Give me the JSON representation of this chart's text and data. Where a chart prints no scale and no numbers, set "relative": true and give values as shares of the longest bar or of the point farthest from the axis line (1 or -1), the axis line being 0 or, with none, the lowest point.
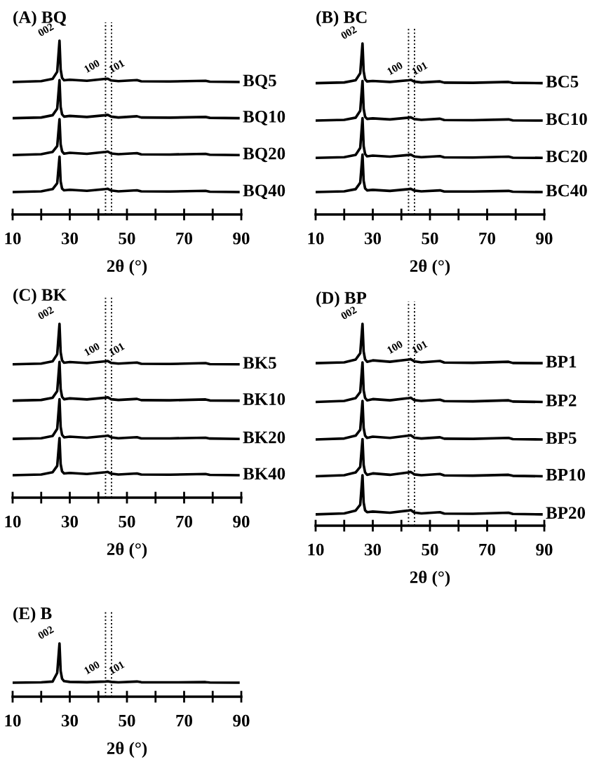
{
  "chart_data": [
    {
      "type": "line",
      "title": "(A) BQ",
      "xlabel": "2θ (°)",
      "relative": true,
      "tick_labels": "x",
      "legend": false,
      "grid": false,
      "marker": "none",
      "line_style": "solid",
      "xlim": [
        10,
        90
      ],
      "xticks": [
        10,
        {
          "value": 20,
          "label": null
        },
        30,
        {
          "value": 40,
          "label": null
        },
        50,
        {
          "value": 60,
          "label": null
        },
        70,
        {
          "value": 80,
          "label": null
        },
        90
      ],
      "x": [
        10,
        20,
        24,
        25.6,
        26.4,
        26.8,
        27.3,
        28,
        30,
        36,
        42.5,
        43.3,
        44.5,
        47,
        53.5,
        55,
        65,
        77.5,
        79,
        89
      ],
      "series": [
        {
          "name": "BQ5",
          "color": "#000000",
          "values": [
            0.762,
            0.767,
            0.78,
            0.821,
            1,
            0.834,
            0.786,
            0.772,
            0.775,
            0.769,
            0.78,
            0.781,
            0.771,
            0.767,
            0.773,
            0.766,
            0.765,
            0.769,
            0.764,
            0.762
          ]
        },
        {
          "name": "BQ10",
          "color": "#000000",
          "values": [
            0.554,
            0.558,
            0.571,
            0.609,
            0.773,
            0.619,
            0.576,
            0.563,
            0.567,
            0.561,
            0.571,
            0.573,
            0.563,
            0.558,
            0.565,
            0.558,
            0.557,
            0.561,
            0.556,
            0.554
          ]
        },
        {
          "name": "BQ20",
          "color": "#000000",
          "values": [
            0.342,
            0.347,
            0.36,
            0.394,
            0.548,
            0.404,
            0.363,
            0.35,
            0.355,
            0.349,
            0.36,
            0.362,
            0.351,
            0.347,
            0.353,
            0.346,
            0.345,
            0.349,
            0.344,
            0.342
          ]
        },
        {
          "name": "BQ40",
          "color": "#000000",
          "values": [
            0.129,
            0.133,
            0.146,
            0.18,
            0.332,
            0.19,
            0.149,
            0.139,
            0.142,
            0.136,
            0.146,
            0.148,
            0.138,
            0.133,
            0.139,
            0.133,
            0.132,
            0.136,
            0.131,
            0.129
          ]
        }
      ],
      "annotations": [
        {
          "text": "002",
          "x": 26.4,
          "y": 1
        },
        {
          "text": "100",
          "x": 42.5,
          "y": 0.79
        },
        {
          "text": "101",
          "x": 44.6,
          "y": 0.79
        }
      ],
      "ref_lines": [
        {
          "axis": "x",
          "value": 42.5,
          "color": "#000000",
          "line_style": "dotted"
        },
        {
          "axis": "x",
          "value": 44.6,
          "color": "#000000",
          "line_style": "dotted"
        }
      ]
    },
    {
      "type": "line",
      "title": "(B) BC",
      "xlabel": "2θ (°)",
      "relative": true,
      "tick_labels": "x",
      "legend": false,
      "grid": false,
      "marker": "none",
      "line_style": "solid",
      "xlim": [
        10,
        90
      ],
      "xticks": [
        10,
        {
          "value": 20,
          "label": null
        },
        30,
        {
          "value": 40,
          "label": null
        },
        50,
        {
          "value": 60,
          "label": null
        },
        70,
        {
          "value": 80,
          "label": null
        },
        90
      ],
      "x": [
        10,
        20,
        24,
        25.6,
        26.4,
        26.8,
        27.3,
        28,
        30,
        36,
        42.5,
        43.3,
        44.5,
        47,
        53.5,
        55,
        65,
        77.5,
        79,
        89
      ],
      "series": [
        {
          "name": "BC5",
          "color": "#000000",
          "values": [
            0.768,
            0.772,
            0.785,
            0.826,
            1,
            0.838,
            0.791,
            0.778,
            0.781,
            0.775,
            0.785,
            0.787,
            0.777,
            0.772,
            0.778,
            0.771,
            0.77,
            0.775,
            0.77,
            0.768
          ]
        },
        {
          "name": "BC10",
          "color": "#000000",
          "values": [
            0.549,
            0.553,
            0.566,
            0.607,
            0.781,
            0.619,
            0.572,
            0.559,
            0.562,
            0.556,
            0.566,
            0.568,
            0.558,
            0.553,
            0.56,
            0.552,
            0.551,
            0.556,
            0.55,
            0.549
          ]
        },
        {
          "name": "BC20",
          "color": "#000000",
          "values": [
            0.331,
            0.335,
            0.348,
            0.389,
            0.563,
            0.4,
            0.354,
            0.34,
            0.344,
            0.338,
            0.348,
            0.35,
            0.339,
            0.335,
            0.341,
            0.334,
            0.333,
            0.338,
            0.332,
            0.331
          ]
        },
        {
          "name": "BC40",
          "color": "#000000",
          "values": [
            0.131,
            0.135,
            0.148,
            0.186,
            0.35,
            0.197,
            0.153,
            0.141,
            0.144,
            0.138,
            0.148,
            0.15,
            0.14,
            0.135,
            0.141,
            0.134,
            0.134,
            0.138,
            0.133,
            0.131
          ]
        }
      ],
      "annotations": [
        {
          "text": "002",
          "x": 26.4,
          "y": 1
        },
        {
          "text": "100",
          "x": 42.5,
          "y": 0.79
        },
        {
          "text": "101",
          "x": 44.6,
          "y": 0.79
        }
      ],
      "ref_lines": [
        {
          "axis": "x",
          "value": 42.5,
          "color": "#000000",
          "line_style": "dotted"
        },
        {
          "axis": "x",
          "value": 44.6,
          "color": "#000000",
          "line_style": "dotted"
        }
      ]
    },
    {
      "type": "line",
      "title": "(C) BK",
      "xlabel": "2θ (°)",
      "relative": true,
      "tick_labels": "x",
      "legend": false,
      "grid": false,
      "marker": "none",
      "line_style": "solid",
      "xlim": [
        10,
        90
      ],
      "xticks": [
        10,
        {
          "value": 20,
          "label": null
        },
        30,
        {
          "value": 40,
          "label": null
        },
        50,
        {
          "value": 60,
          "label": null
        },
        70,
        {
          "value": 80,
          "label": null
        },
        90
      ],
      "x": [
        10,
        20,
        24,
        25.6,
        26.4,
        26.8,
        27.3,
        28,
        30,
        36,
        42.5,
        43.3,
        44.5,
        47,
        53.5,
        55,
        65,
        77.5,
        79,
        89
      ],
      "series": [
        {
          "name": "BK5",
          "color": "#000000",
          "values": [
            0.767,
            0.771,
            0.784,
            0.825,
            1,
            0.836,
            0.79,
            0.776,
            0.78,
            0.774,
            0.784,
            0.786,
            0.775,
            0.771,
            0.777,
            0.77,
            0.769,
            0.774,
            0.768,
            0.767
          ]
        },
        {
          "name": "BK10",
          "color": "#000000",
          "values": [
            0.558,
            0.562,
            0.575,
            0.613,
            0.781,
            0.625,
            0.58,
            0.566,
            0.571,
            0.565,
            0.575,
            0.577,
            0.566,
            0.562,
            0.568,
            0.561,
            0.56,
            0.565,
            0.559,
            0.558
          ]
        },
        {
          "name": "BK20",
          "color": "#000000",
          "values": [
            0.338,
            0.342,
            0.355,
            0.396,
            0.566,
            0.407,
            0.361,
            0.347,
            0.351,
            0.345,
            0.355,
            0.357,
            0.347,
            0.342,
            0.348,
            0.341,
            0.341,
            0.345,
            0.34,
            0.338
          ]
        },
        {
          "name": "BK40",
          "color": "#000000",
          "values": [
            0.129,
            0.133,
            0.146,
            0.183,
            0.343,
            0.193,
            0.151,
            0.139,
            0.142,
            0.136,
            0.146,
            0.148,
            0.138,
            0.133,
            0.139,
            0.133,
            0.132,
            0.136,
            0.131,
            0.129
          ]
        }
      ],
      "annotations": [
        {
          "text": "002",
          "x": 26.4,
          "y": 1
        },
        {
          "text": "100",
          "x": 42.5,
          "y": 0.79
        },
        {
          "text": "101",
          "x": 44.6,
          "y": 0.79
        }
      ],
      "ref_lines": [
        {
          "axis": "x",
          "value": 42.5,
          "color": "#000000",
          "line_style": "dotted"
        },
        {
          "axis": "x",
          "value": 44.6,
          "color": "#000000",
          "line_style": "dotted"
        }
      ]
    },
    {
      "type": "line",
      "title": "(D) BP",
      "xlabel": "2θ (°)",
      "relative": true,
      "tick_labels": "x",
      "legend": false,
      "grid": false,
      "marker": "none",
      "line_style": "solid",
      "xlim": [
        10,
        90
      ],
      "xticks": [
        10,
        {
          "value": 20,
          "label": null
        },
        30,
        {
          "value": 40,
          "label": null
        },
        50,
        {
          "value": 60,
          "label": null
        },
        70,
        {
          "value": 80,
          "label": null
        },
        90
      ],
      "x": [
        10,
        20,
        24,
        25.6,
        26.4,
        26.8,
        27.3,
        28,
        30,
        36,
        42.5,
        43.3,
        44.5,
        47,
        53.5,
        55,
        65,
        77.5,
        79,
        89
      ],
      "series": [
        {
          "name": "BP1",
          "color": "#000000",
          "values": [
            0.805,
            0.809,
            0.823,
            0.854,
            1,
            0.863,
            0.824,
            0.812,
            0.819,
            0.812,
            0.823,
            0.825,
            0.814,
            0.809,
            0.816,
            0.808,
            0.807,
            0.812,
            0.806,
            0.805
          ]
        },
        {
          "name": "BP2",
          "color": "#000000",
          "values": [
            0.613,
            0.618,
            0.632,
            0.662,
            0.809,
            0.671,
            0.633,
            0.621,
            0.627,
            0.621,
            0.632,
            0.634,
            0.622,
            0.618,
            0.624,
            0.617,
            0.616,
            0.621,
            0.615,
            0.613
          ]
        },
        {
          "name": "BP5",
          "color": "#000000",
          "values": [
            0.427,
            0.432,
            0.446,
            0.475,
            0.618,
            0.485,
            0.446,
            0.435,
            0.441,
            0.435,
            0.446,
            0.448,
            0.436,
            0.432,
            0.438,
            0.431,
            0.43,
            0.435,
            0.429,
            0.427
          ]
        },
        {
          "name": "BP10",
          "color": "#000000",
          "values": [
            0.245,
            0.25,
            0.264,
            0.291,
            0.429,
            0.301,
            0.264,
            0.252,
            0.259,
            0.252,
            0.264,
            0.266,
            0.254,
            0.25,
            0.256,
            0.249,
            0.248,
            0.252,
            0.247,
            0.245
          ]
        },
        {
          "name": "BP20",
          "color": "#000000",
          "values": [
            0.056,
            0.061,
            0.075,
            0.104,
            0.25,
            0.115,
            0.076,
            0.067,
            0.07,
            0.064,
            0.075,
            0.077,
            0.065,
            0.061,
            0.067,
            0.06,
            0.059,
            0.064,
            0.058,
            0.056
          ]
        }
      ],
      "annotations": [
        {
          "text": "002",
          "x": 26.4,
          "y": 1
        },
        {
          "text": "100",
          "x": 42.5,
          "y": 0.83
        },
        {
          "text": "101",
          "x": 44.6,
          "y": 0.83
        }
      ],
      "ref_lines": [
        {
          "axis": "x",
          "value": 42.5,
          "color": "#000000",
          "line_style": "dotted"
        },
        {
          "axis": "x",
          "value": 44.6,
          "color": "#000000",
          "line_style": "dotted"
        }
      ]
    },
    {
      "type": "line",
      "title": "(E) B",
      "xlabel": "2θ (°)",
      "relative": true,
      "tick_labels": "x",
      "legend": false,
      "grid": false,
      "marker": "none",
      "line_style": "solid",
      "xlim": [
        10,
        90
      ],
      "xticks": [
        10,
        {
          "value": 20,
          "label": null
        },
        30,
        {
          "value": 40,
          "label": null
        },
        50,
        {
          "value": 60,
          "label": null
        },
        70,
        {
          "value": 80,
          "label": null
        },
        90
      ],
      "x": [
        10,
        20,
        24,
        25.6,
        26.4,
        26.8,
        27.3,
        28,
        30,
        36,
        42.5,
        43.3,
        44.5,
        47,
        53.5,
        55,
        65,
        77.5,
        79,
        89
      ],
      "series": [
        {
          "color": "#000000",
          "values": [
            0.263,
            0.27,
            0.285,
            0.447,
            1,
            0.484,
            0.337,
            0.292,
            0.278,
            0.272,
            0.285,
            0.289,
            0.278,
            0.27,
            0.285,
            0.272,
            0.269,
            0.274,
            0.267,
            0.263
          ]
        }
      ],
      "annotations": [
        {
          "text": "002",
          "x": 26.4,
          "y": 1
        },
        {
          "text": "100",
          "x": 42.5,
          "y": 0.34
        },
        {
          "text": "101",
          "x": 44.6,
          "y": 0.34
        }
      ],
      "ref_lines": [
        {
          "axis": "x",
          "value": 42.5,
          "color": "#000000",
          "line_style": "dotted"
        },
        {
          "axis": "x",
          "value": 44.6,
          "color": "#000000",
          "line_style": "dotted"
        }
      ]
    }
  ]
}
